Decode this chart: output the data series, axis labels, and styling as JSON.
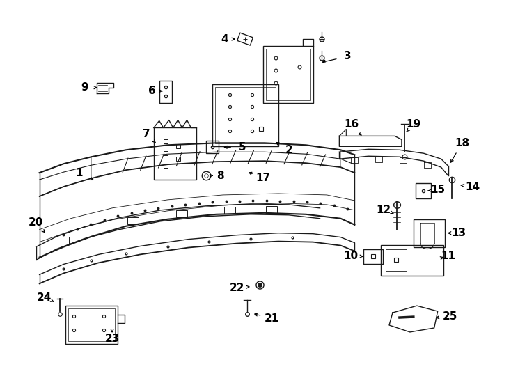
{
  "background_color": "#ffffff",
  "line_color": "#1a1a1a",
  "fig_width": 7.34,
  "fig_height": 5.4,
  "dpi": 100,
  "label_fontsize": 11
}
